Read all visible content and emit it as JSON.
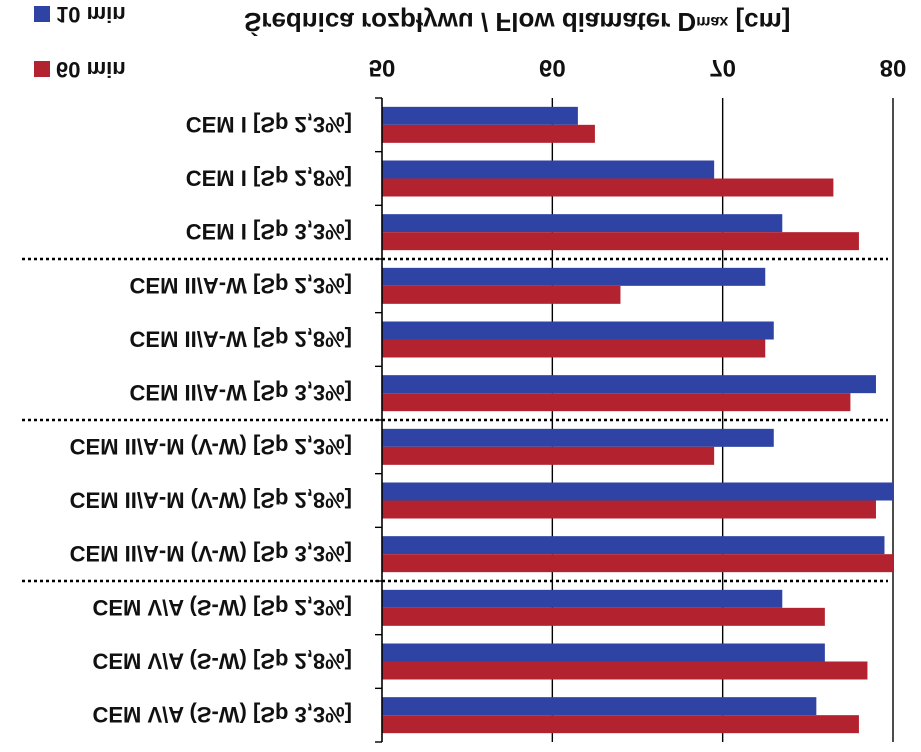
{
  "chart_data": {
    "type": "bar",
    "orientation": "horizontal",
    "title": "Średnica rozpływu / Flow diamater D",
    "title_subscript": "max",
    "title_unit": "[cm]",
    "xlim": [
      50,
      80
    ],
    "xticks": [
      "50",
      "60",
      "70",
      "80"
    ],
    "grid": "x-major",
    "legend_placement": "top-left",
    "categories": [
      "CEM I [Sp 2,3%]",
      "CEM I [Sp 2,8%]",
      "CEM I [Sp 3,3%]",
      "CEM II/A-W [Sp 2,3%]",
      "CEM II/A-W [Sp 2,8%]",
      "CEM II/A-W [Sp 3,3%]",
      "CEM II/A-M (V-W) [Sp 2,3%]",
      "CEM II/A-M (V-W) [Sp 2,8%]",
      "CEM II/A-M (V-W) [Sp 3,3%]",
      "CEM V/A (S-W) [Sp 2,3%]",
      "CEM V/A (S-W) [Sp 2,8%]",
      "CEM V/A (S-W) [Sp 3,3%]"
    ],
    "series": [
      {
        "name": "10 min",
        "color": "#2e43a4",
        "values": [
          61.5,
          69.5,
          73.5,
          72.5,
          73.0,
          79.0,
          73.0,
          80.0,
          79.5,
          73.5,
          76.0,
          75.5
        ]
      },
      {
        "name": "60 min",
        "color": "#b3232f",
        "values": [
          62.5,
          76.5,
          78.0,
          64.0,
          72.5,
          77.5,
          69.5,
          79.0,
          80.0,
          76.0,
          78.5,
          78.0
        ]
      }
    ],
    "group_separators_after": [
      3,
      6,
      9
    ]
  }
}
